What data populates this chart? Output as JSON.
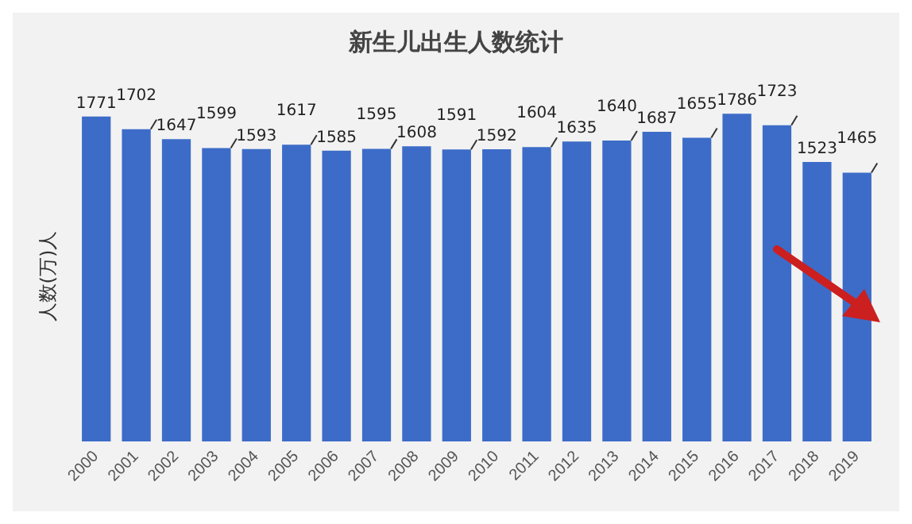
{
  "chart_data": {
    "type": "bar",
    "title": "新生儿出生人数统计",
    "ylabel": "人数(万)人",
    "categories": [
      "2000",
      "2001",
      "2002",
      "2003",
      "2004",
      "2005",
      "2006",
      "2007",
      "2008",
      "2009",
      "2010",
      "2011",
      "2012",
      "2013",
      "2014",
      "2015",
      "2016",
      "2017",
      "2018",
      "2019"
    ],
    "values": [
      1771,
      1702,
      1647,
      1599,
      1593,
      1617,
      1585,
      1595,
      1608,
      1591,
      1592,
      1604,
      1635,
      1640,
      1687,
      1655,
      1786,
      1723,
      1523,
      1465
    ],
    "color": "#3d6cc8",
    "data_labels": true,
    "tick_labels": "x"
  }
}
